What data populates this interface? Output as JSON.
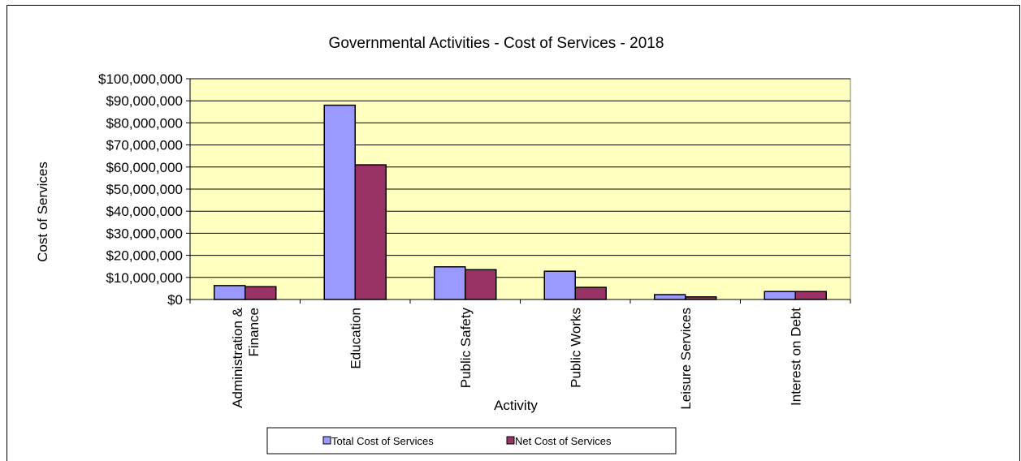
{
  "chart_data": {
    "type": "bar",
    "title": "Governmental Activities - Cost of Services - 2018",
    "xlabel": "Activity",
    "ylabel": "Cost of Services",
    "ylim": [
      0,
      100000000
    ],
    "yticks": [
      "$0",
      "$10,000,000",
      "$20,000,000",
      "$30,000,000",
      "$40,000,000",
      "$50,000,000",
      "$60,000,000",
      "$70,000,000",
      "$80,000,000",
      "$90,000,000",
      "$100,000,000"
    ],
    "categories": [
      [
        "Administration &",
        "Finance"
      ],
      [
        "Education"
      ],
      [
        "Public Safety"
      ],
      [
        "Public Works"
      ],
      [
        "Leisure Services"
      ],
      [
        "Interest on Debt"
      ]
    ],
    "series": [
      {
        "name": "Total Cost of Services",
        "color": "#9999ff",
        "values": [
          6300000,
          88000000,
          14800000,
          12800000,
          2200000,
          3600000
        ]
      },
      {
        "name": "Net Cost of Services",
        "color": "#993366",
        "values": [
          5800000,
          61000000,
          13500000,
          5500000,
          1200000,
          3600000
        ]
      }
    ],
    "grid": true,
    "legend": "bottom",
    "plot_background": "#ffffc0"
  }
}
